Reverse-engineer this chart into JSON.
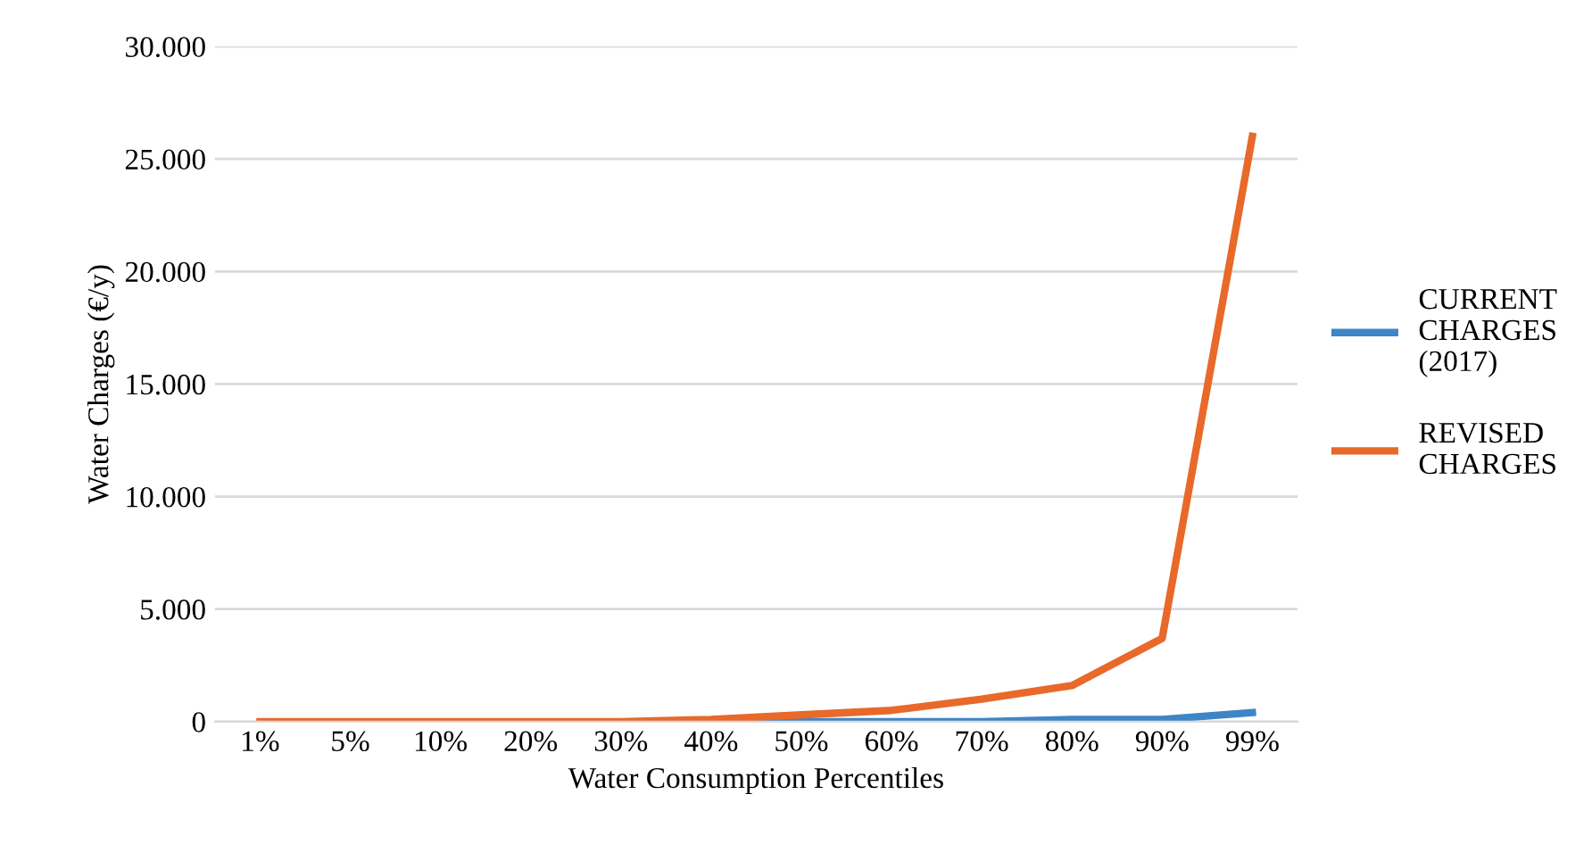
{
  "chart_data": {
    "type": "line",
    "xlabel": "Water Consumption Percentiles",
    "ylabel": "Water Charges (€/y)",
    "categories": [
      "1%",
      "5%",
      "10%",
      "20%",
      "30%",
      "40%",
      "50%",
      "60%",
      "70%",
      "80%",
      "90%",
      "99%"
    ],
    "series": [
      {
        "name": "CURRENT CHARGES (2017)",
        "color": "#3d85c6",
        "values": [
          null,
          null,
          null,
          null,
          null,
          0,
          0,
          0,
          0,
          100,
          100,
          400
        ]
      },
      {
        "name": "REVISED CHARGES",
        "color": "#e8692a",
        "values": [
          0,
          0,
          0,
          0,
          0,
          100,
          300,
          500,
          1000,
          1600,
          3700,
          26000
        ]
      }
    ],
    "ylim": [
      0,
      30000
    ],
    "yticks": [
      0,
      {
        "value": 5000,
        "label": "5.000"
      },
      {
        "value": 10000,
        "label": "10.000"
      },
      {
        "value": 15000,
        "label": "15.000"
      },
      {
        "value": 20000,
        "label": "20.000"
      },
      {
        "value": 25000,
        "label": "25.000"
      },
      {
        "value": 30000,
        "label": "30.000"
      }
    ],
    "grid": "y",
    "legend": "right",
    "marker": "none",
    "line_style": "solid"
  }
}
